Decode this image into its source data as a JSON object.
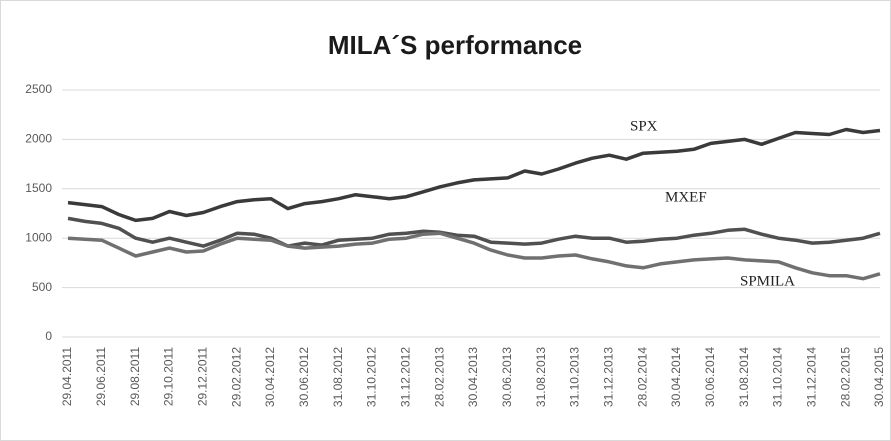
{
  "chart_data": {
    "type": "line",
    "title": "MILA´S performance",
    "categories": [
      "29.04.2011",
      null,
      "29.06.2011",
      null,
      "29.08.2011",
      null,
      "29.10.2011",
      null,
      "29.12.2011",
      null,
      "29.02.2012",
      null,
      "30.04.2012",
      null,
      "30.06.2012",
      null,
      "31.08.2012",
      null,
      "31.10.2012",
      null,
      "31.12.2012",
      null,
      "28.02.2013",
      null,
      "30.04.2013",
      null,
      "30.06.2013",
      null,
      "31.08.2013",
      null,
      "31.10.2013",
      null,
      "31.12.2013",
      null,
      "28.02.2014",
      null,
      "30.04.2014",
      null,
      "30.06.2014",
      null,
      "31.08.2014",
      null,
      "31.10.2014",
      null,
      "31.12.2014",
      null,
      "28.02.2015",
      null,
      "30.04.2015"
    ],
    "series": [
      {
        "name": "SPX",
        "color": "#3a3a3a",
        "values": [
          1360,
          1340,
          1320,
          1240,
          1180,
          1200,
          1270,
          1230,
          1260,
          1320,
          1370,
          1390,
          1400,
          1300,
          1350,
          1370,
          1400,
          1440,
          1420,
          1400,
          1420,
          1470,
          1520,
          1560,
          1590,
          1600,
          1610,
          1680,
          1650,
          1700,
          1760,
          1810,
          1840,
          1800,
          1860,
          1870,
          1880,
          1900,
          1960,
          1980,
          2000,
          1950,
          2010,
          2070,
          2060,
          2050,
          2100,
          2070,
          2090
        ]
      },
      {
        "name": "MXEF",
        "color": "#505050",
        "values": [
          1200,
          1170,
          1150,
          1100,
          1000,
          960,
          1000,
          960,
          920,
          980,
          1050,
          1040,
          1000,
          920,
          950,
          930,
          980,
          990,
          1000,
          1040,
          1050,
          1070,
          1060,
          1030,
          1020,
          960,
          950,
          940,
          950,
          990,
          1020,
          1000,
          1000,
          960,
          970,
          990,
          1000,
          1030,
          1050,
          1080,
          1090,
          1040,
          1000,
          980,
          950,
          960,
          980,
          1000,
          1050
        ]
      },
      {
        "name": "SPMILA",
        "color": "#707070",
        "values": [
          1000,
          990,
          980,
          900,
          820,
          860,
          900,
          860,
          870,
          940,
          1000,
          990,
          980,
          920,
          900,
          910,
          920,
          940,
          950,
          990,
          1000,
          1040,
          1050,
          1000,
          950,
          880,
          830,
          800,
          800,
          820,
          830,
          790,
          760,
          720,
          700,
          740,
          760,
          780,
          790,
          800,
          780,
          770,
          760,
          700,
          650,
          620,
          620,
          590,
          640
        ]
      }
    ],
    "ylim": [
      0,
      2500
    ],
    "yticks": [
      0,
      500,
      1000,
      1500,
      2000,
      2500
    ],
    "grid": true
  }
}
